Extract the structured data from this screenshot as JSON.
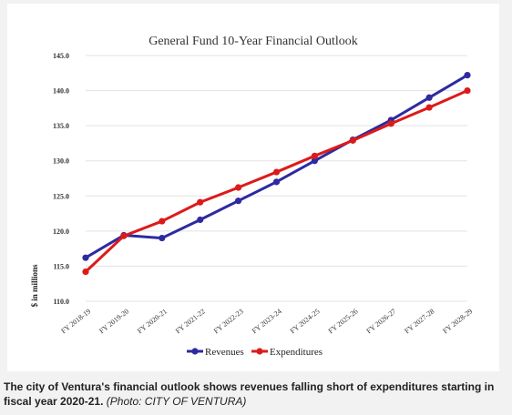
{
  "chart_data": {
    "type": "line",
    "title": "General Fund 10-Year Financial Outlook",
    "xlabel": "",
    "ylabel": "$ in millions",
    "categories": [
      "FY 2018-19",
      "FY 2019-20",
      "FY 2020-21",
      "FY 2021-22",
      "FY 2022-23",
      "FY 2023-24",
      "FY 2024-25",
      "FY 2025-26",
      "FY 2026-27",
      "FY 2027-28",
      "FY 2028-29"
    ],
    "ylim": [
      110,
      145
    ],
    "yticks": [
      "110.0",
      "115.0",
      "120.0",
      "125.0",
      "130.0",
      "135.0",
      "140.0",
      "145.0"
    ],
    "series": [
      {
        "name": "Revenues",
        "color": "#2e2aa0",
        "values": [
          116.2,
          119.4,
          119.0,
          121.6,
          124.3,
          127.0,
          130.0,
          133.0,
          135.8,
          139.0,
          142.2
        ]
      },
      {
        "name": "Expenditures",
        "color": "#dd1a1a",
        "values": [
          114.2,
          119.3,
          121.4,
          124.1,
          126.2,
          128.4,
          130.7,
          132.9,
          135.3,
          137.6,
          140.0
        ]
      }
    ],
    "grid": true,
    "legend": "bottom"
  },
  "caption": {
    "main": "The city of Ventura's financial outlook shows revenues falling short of expenditures starting in fiscal year 2020-21.",
    "credit": "(Photo: CITY OF VENTURA)"
  }
}
